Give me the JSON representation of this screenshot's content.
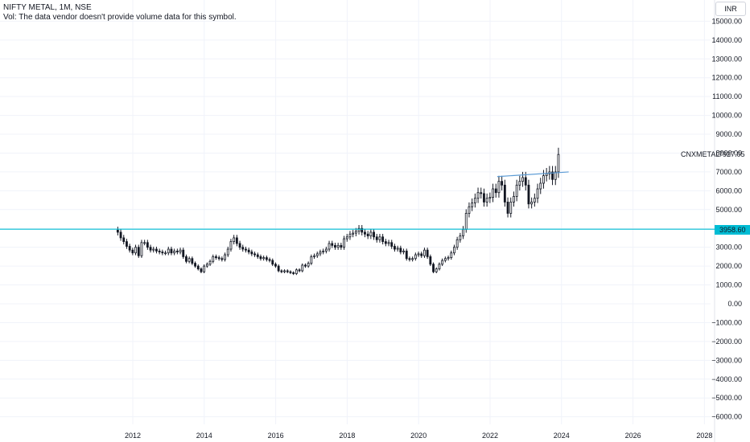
{
  "legend": {
    "title": "NIFTY METAL, 1M, NSE",
    "volume_note": "Vol: The data vendor doesn't provide volume data for this symbol."
  },
  "currency": "INR",
  "symbol_label": "CNXMETAL",
  "last_price_label": "7927.05",
  "level_label": "3958.60",
  "colors": {
    "candle": "#131722",
    "support_line": "#00bcd4",
    "trend_line": "#5b9bd5",
    "grid": "#f0f3fa",
    "axis_text": "#131722"
  },
  "chart_data": {
    "type": "candlestick",
    "title": "NIFTY METAL, 1M, NSE",
    "y_axis": {
      "min": -6000,
      "max": 15000,
      "ticks": [
        "15000.00",
        "14000.00",
        "13000.00",
        "12000.00",
        "11000.00",
        "10000.00",
        "9000.00",
        "8000.00",
        "7000.00",
        "6000.00",
        "5000.00",
        "4000.00",
        "3000.00",
        "2000.00",
        "1000.00",
        "0.00",
        "−1000.00",
        "−2000.00",
        "−3000.00",
        "−4000.00",
        "−5000.00",
        "−6000.00"
      ],
      "tick_values": [
        15000,
        14000,
        13000,
        12000,
        11000,
        10000,
        9000,
        8000,
        7000,
        6000,
        5000,
        4000,
        3000,
        2000,
        1000,
        0,
        -1000,
        -2000,
        -3000,
        -4000,
        -5000,
        -6000
      ]
    },
    "x_axis": {
      "ticks": [
        "2012",
        "2014",
        "2016",
        "2018",
        "2020",
        "2022",
        "2024",
        "2026",
        "2028"
      ],
      "tick_values": [
        2012,
        2014,
        2016,
        2018,
        2020,
        2022,
        2024,
        2026,
        2028
      ]
    },
    "grid": true,
    "start": 2011.58,
    "closes": [
      3800,
      3500,
      3300,
      3050,
      2850,
      2700,
      3000,
      2550,
      3250,
      3250,
      3000,
      2850,
      2900,
      2800,
      2750,
      2700,
      2700,
      2900,
      2700,
      2800,
      2750,
      2850,
      2500,
      2250,
      2400,
      2150,
      2000,
      1850,
      1700,
      2000,
      2100,
      2250,
      2500,
      2450,
      2400,
      2350,
      2600,
      2900,
      3300,
      3500,
      3200,
      3000,
      2900,
      2850,
      2750,
      2650,
      2600,
      2500,
      2400,
      2450,
      2350,
      2300,
      2100,
      2000,
      1750,
      1700,
      1750,
      1700,
      1650,
      1600,
      1800,
      1750,
      2050,
      2000,
      2150,
      2500,
      2550,
      2650,
      2750,
      2800,
      2900,
      3200,
      3100,
      3000,
      3100,
      3000,
      3450,
      3550,
      3700,
      3750,
      3850,
      4000,
      3800,
      3700,
      3600,
      3800,
      3550,
      3400,
      3550,
      3300,
      3200,
      3250,
      3050,
      2900,
      2950,
      2750,
      2800,
      2400,
      2350,
      2400,
      2600,
      2650,
      2550,
      2850,
      2500,
      2100,
      1700,
      1850,
      2100,
      2300,
      2400,
      2450,
      2700,
      3000,
      3400,
      3600,
      3950,
      4800,
      5150,
      5350,
      5600,
      5900,
      5850,
      5400,
      5600,
      5650,
      6100,
      5900,
      6500,
      6300,
      5400,
      4800,
      5400,
      5700,
      6300,
      6500,
      6700,
      6300,
      5300,
      5400,
      5600,
      6100,
      6400,
      6800,
      6900,
      7000,
      6600,
      7000,
      7927
    ]
  },
  "annotations": {
    "support_level": 3958.6,
    "trend_line": {
      "x1": 2022.2,
      "y1": 6750,
      "x2": 2024.2,
      "y2": 7000
    }
  }
}
